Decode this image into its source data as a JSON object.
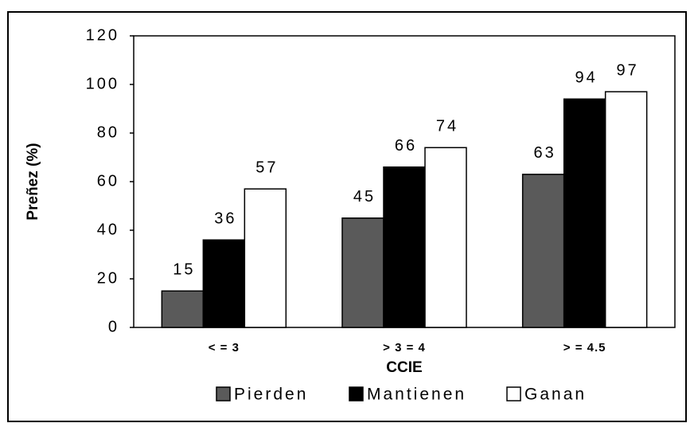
{
  "chart_data": {
    "type": "bar",
    "y_label": "Preñez (%)",
    "x_label": "CCIE",
    "categories": [
      "< = 3",
      "> 3 = 4",
      "> = 4.5"
    ],
    "series": [
      {
        "name": "Pierden",
        "color": "#5a5a5a",
        "values": [
          15,
          45,
          63
        ]
      },
      {
        "name": "Mantienen",
        "color": "#000000",
        "values": [
          36,
          66,
          94
        ]
      },
      {
        "name": "Ganan",
        "color": "#ffffff",
        "values": [
          57,
          74,
          97
        ]
      }
    ],
    "ylim": [
      0,
      120
    ],
    "yticks": [
      0,
      20,
      40,
      60,
      80,
      100,
      120
    ],
    "grid": false,
    "legend": "bottom"
  }
}
